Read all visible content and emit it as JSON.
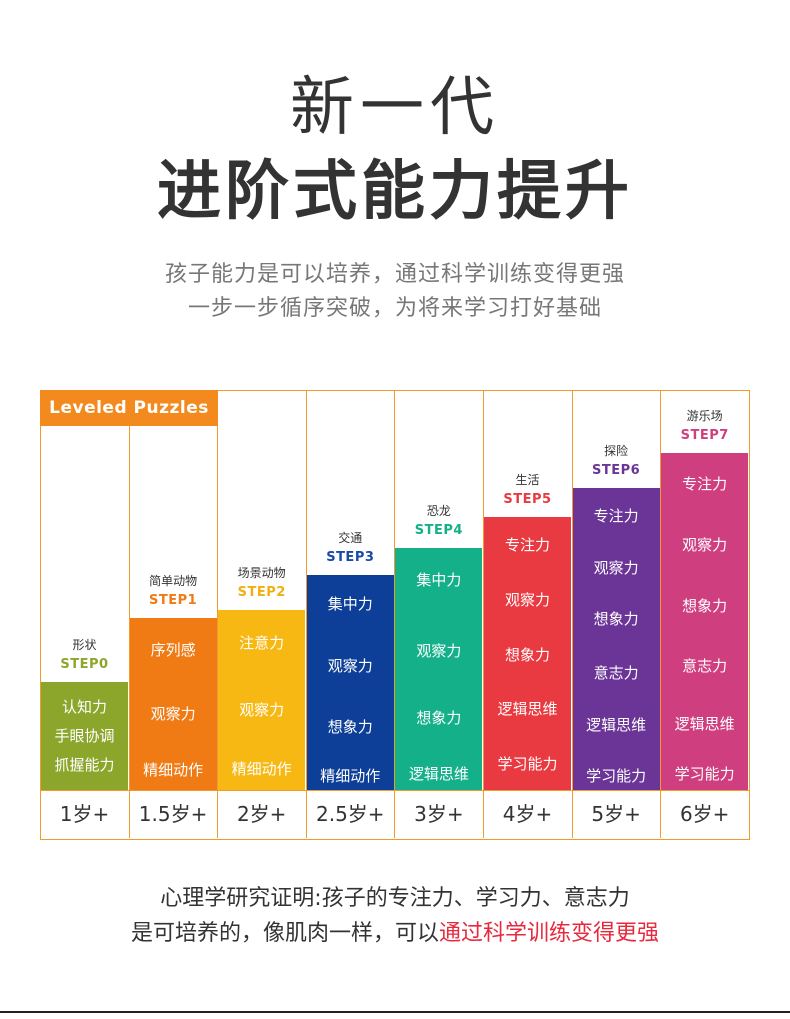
{
  "title": {
    "line1": "新一代",
    "line2": "进阶式能力提升"
  },
  "subtitle": {
    "line1": "孩子能力是可以培养，通过科学训练变得更强",
    "line2": "一步一步循序突破，为将来学习打好基础"
  },
  "brand": "Leveled Puzzles",
  "colors": {
    "accent": "#f29a2e",
    "highlight": "#e8283c"
  },
  "steps": [
    {
      "name": "形状",
      "step": "STEP0",
      "color": "#8ca62b",
      "stepColor": "#8ca62b",
      "age": "1岁+",
      "skills": [
        "认知力",
        "手眼协调",
        "抓握能力"
      ]
    },
    {
      "name": "简单动物",
      "step": "STEP1",
      "color": "#f07a14",
      "stepColor": "#f07a14",
      "age": "1.5岁+",
      "skills": [
        "序列感",
        "观察力",
        "精细动作"
      ]
    },
    {
      "name": "场景动物",
      "step": "STEP2",
      "color": "#f7b814",
      "stepColor": "#f0b012",
      "age": "2岁+",
      "skills": [
        "注意力",
        "观察力",
        "精细动作"
      ]
    },
    {
      "name": "交通",
      "step": "STEP3",
      "color": "#0e3f98",
      "stepColor": "#1a4aa8",
      "age": "2.5岁+",
      "skills": [
        "集中力",
        "观察力",
        "想象力",
        "精细动作"
      ]
    },
    {
      "name": "恐龙",
      "step": "STEP4",
      "color": "#14b08a",
      "stepColor": "#14b08a",
      "age": "3岁+",
      "skills": [
        "集中力",
        "观察力",
        "想象力",
        "逻辑思维"
      ]
    },
    {
      "name": "生活",
      "step": "STEP5",
      "color": "#e83a40",
      "stepColor": "#e83a40",
      "age": "4岁+",
      "skills": [
        "专注力",
        "观察力",
        "想象力",
        "逻辑思维",
        "学习能力"
      ]
    },
    {
      "name": "探险",
      "step": "STEP6",
      "color": "#6a3596",
      "stepColor": "#6a3596",
      "age": "5岁+",
      "skills": [
        "专注力",
        "观察力",
        "想象力",
        "意志力",
        "逻辑思维",
        "学习能力"
      ]
    },
    {
      "name": "游乐场",
      "step": "STEP7",
      "color": "#cf3f7f",
      "stepColor": "#cf3f7f",
      "age": "6岁+",
      "skills": [
        "专注力",
        "观察力",
        "想象力",
        "意志力",
        "逻辑思维",
        "学习能力"
      ]
    }
  ],
  "footer": {
    "line1": "心理学研究证明:孩子的专注力、学习力、意志力",
    "line2_plain": "是可培养的，像肌肉一样，可以",
    "line2_highlight": "通过科学训练变得更强"
  }
}
